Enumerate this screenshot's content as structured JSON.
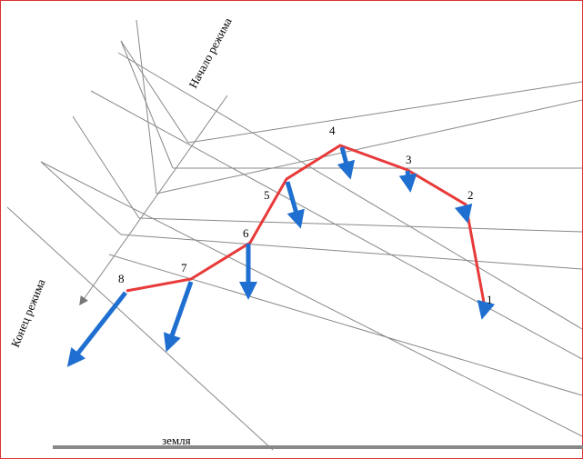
{
  "labels": {
    "start": "Начало режима",
    "end": "Конец режима",
    "ground": "земля"
  },
  "points": [
    {
      "label": "1"
    },
    {
      "label": "2"
    },
    {
      "label": "3"
    },
    {
      "label": "4"
    },
    {
      "label": "5"
    },
    {
      "label": "6"
    },
    {
      "label": "7"
    },
    {
      "label": "8"
    }
  ]
}
